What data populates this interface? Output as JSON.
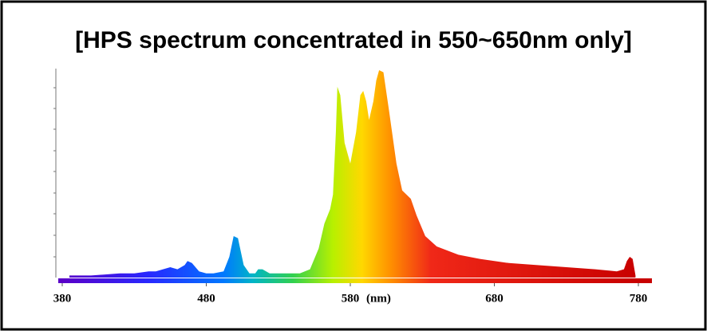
{
  "chart_data": {
    "type": "area",
    "title": "[HPS spectrum concentrated in 550~650nm only]",
    "x_label": "(nm)",
    "x": [
      385,
      400,
      420,
      430,
      440,
      445,
      450,
      455,
      460,
      465,
      467,
      470,
      475,
      480,
      485,
      492,
      496,
      499,
      502,
      506,
      510,
      514,
      516,
      519,
      524,
      535,
      545,
      552,
      558,
      562,
      566,
      568,
      570,
      571,
      573,
      576,
      580,
      584,
      587,
      589,
      591,
      593,
      596,
      598,
      600,
      603,
      607,
      612,
      616,
      619,
      622,
      626,
      632,
      640,
      655,
      670,
      690,
      710,
      730,
      750,
      765,
      770,
      772,
      774,
      776,
      778
    ],
    "values": [
      1,
      1,
      2,
      2,
      3,
      3,
      4,
      5,
      4,
      6,
      8,
      7,
      3,
      2,
      2,
      3,
      10,
      20,
      19,
      6,
      2,
      2,
      4,
      4,
      2,
      2,
      2,
      4,
      14,
      26,
      33,
      40,
      70,
      92,
      88,
      65,
      55,
      70,
      88,
      90,
      85,
      76,
      85,
      95,
      100,
      99,
      80,
      55,
      42,
      40,
      38,
      30,
      20,
      15,
      11,
      9,
      7,
      6,
      5,
      4,
      3,
      4,
      8,
      10,
      9,
      1
    ],
    "xlim": [
      380,
      780
    ],
    "xticks": [
      380,
      480,
      580,
      680,
      780
    ],
    "ylim": [
      0,
      100
    ]
  }
}
